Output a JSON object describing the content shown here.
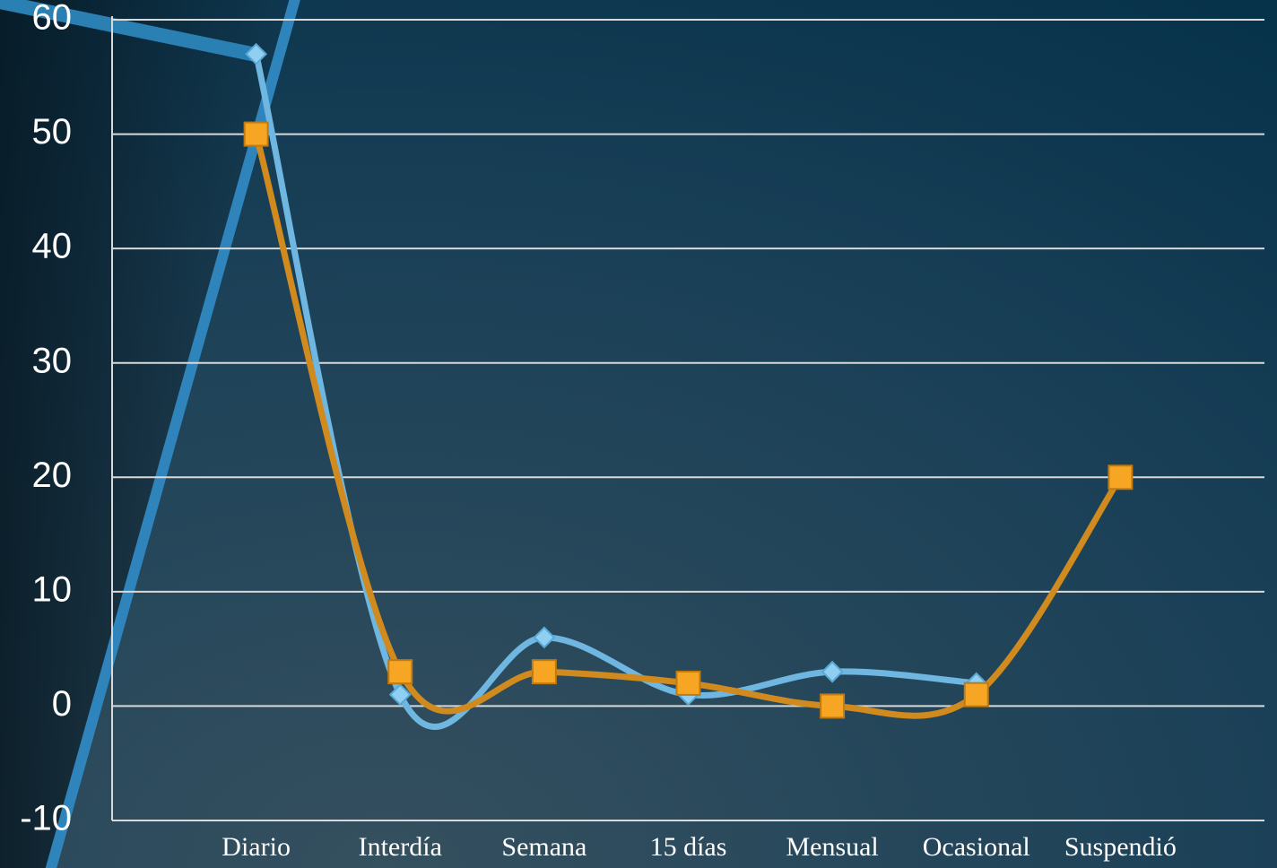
{
  "chart_data": {
    "type": "line",
    "categories": [
      "Diario",
      "Interdía",
      "Semana",
      "15 días",
      "Mensual",
      "Ocasional",
      "Suspendió"
    ],
    "series": [
      {
        "color": "#6fb6e0",
        "marker": "diamond",
        "values": [
          57,
          1,
          6,
          1,
          3,
          2,
          null
        ]
      },
      {
        "color": "#d08a1e",
        "marker": "square",
        "values": [
          50,
          3,
          3,
          2,
          0,
          1,
          20
        ]
      }
    ],
    "ylim": [
      -10,
      60
    ],
    "yticks": [
      -10,
      0,
      10,
      20,
      30,
      40,
      50,
      60
    ],
    "grid": true,
    "smooth": true
  }
}
